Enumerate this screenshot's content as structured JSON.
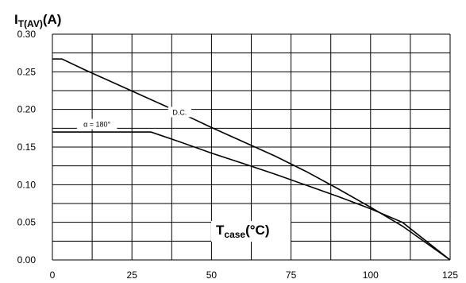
{
  "chart_data": {
    "type": "line",
    "ylabel": {
      "main": "I",
      "sub": "T(AV)",
      "tail": "(A)"
    },
    "xlabel": {
      "main": "T",
      "sub": "case",
      "tail": "(°C)"
    },
    "xlim": [
      0,
      125
    ],
    "ylim": [
      0,
      0.3
    ],
    "x_ticks": [
      0,
      25,
      50,
      75,
      100,
      125
    ],
    "x_tick_labels": [
      "0",
      "25",
      "50",
      "75",
      "100",
      "125"
    ],
    "y_ticks": [
      0,
      0.05,
      0.1,
      0.15,
      0.2,
      0.25,
      0.3
    ],
    "y_tick_labels": [
      "0.00",
      "0.05",
      "0.10",
      "0.15",
      "0.20",
      "0.25",
      "0.30"
    ],
    "x_grid": [
      0,
      12.5,
      25,
      37.5,
      50,
      62.5,
      75,
      87.5,
      100,
      112.5,
      125
    ],
    "y_grid": [
      0,
      0.025,
      0.05,
      0.075,
      0.1,
      0.125,
      0.15,
      0.175,
      0.2,
      0.225,
      0.25,
      0.275,
      0.3
    ],
    "grid": true,
    "series": [
      {
        "name": "D.C.",
        "x": [
          0,
          3,
          10,
          20,
          30,
          40,
          50,
          60,
          70,
          80,
          90,
          100,
          110,
          125
        ],
        "y": [
          0.267,
          0.267,
          0.253,
          0.234,
          0.215,
          0.196,
          0.176,
          0.157,
          0.138,
          0.117,
          0.094,
          0.07,
          0.045,
          0.0
        ]
      },
      {
        "name": "α = 180°",
        "x": [
          0,
          31,
          40,
          50,
          60,
          70,
          80,
          90,
          100,
          110,
          125
        ],
        "y": [
          0.17,
          0.17,
          0.157,
          0.142,
          0.128,
          0.114,
          0.099,
          0.084,
          0.068,
          0.05,
          0.0
        ]
      }
    ],
    "annotations": [
      {
        "text": "D.C.",
        "x": 40,
        "y": 0.196
      },
      {
        "text": "α = 180°",
        "x": 14,
        "y": 0.18
      }
    ]
  }
}
